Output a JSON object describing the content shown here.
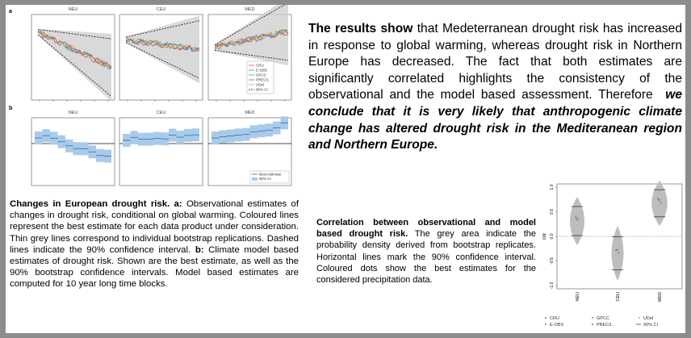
{
  "main_text": {
    "lead": "The results show",
    "body": "that Medeterranean drought risk has increased in response to global warming, whereas drought risk in Northern Europe has decreased. The fact that both estimates are significantly correlated highlights the consistency of the observational and the model based assessment. Therefore",
    "conclusion": "we conclude that it is very likely that anthropogenic climate change has altered drought risk in the Mediteranean region and Northern Europe."
  },
  "figure_left": {
    "panel_a": "a",
    "panel_b": "b",
    "regions": [
      "NEU",
      "CEU",
      "MED"
    ],
    "legend_a": [
      "CRU",
      "E-OBS",
      "GPCC",
      "PREC/L",
      "UDel",
      "90% CI"
    ],
    "legend_b": [
      "Best estimate",
      "90% CI"
    ]
  },
  "caption_left": {
    "title": "Changes in European drought risk.",
    "a_label": "a:",
    "a_text": "Observational estimates of changes in drought risk, conditional on global warming. Coloured lines represent the best estimate for each data product under consideration. Thin grey lines correspond to individual bootstrap replications. Dashed lines indicate the 90% confidence interval.",
    "b_label": "b:",
    "b_text": "Climate model based estimates of drought risk. Shown are the best estimate, as well as the 90% bootstrap confidence intervals. Model based estimates are computed for 10 year long time blocks."
  },
  "caption_right": {
    "title": "Correlation between observational and model based drought risk.",
    "text": "The grey area indicate the probability density derived from bootstrap replicates. Horizontal lines mark the 90% confidence interval. Coloured dots show the best estimates for the considered precipitation data."
  },
  "figure_right": {
    "y_label": "cor",
    "yticks": [
      "1.0",
      "0.5",
      "0.0",
      "-0.5",
      "-1.0"
    ],
    "regions": [
      "NEU",
      "CEU",
      "MED"
    ],
    "legend": [
      "CRU",
      "GPCC",
      "UDel",
      "E-OBS",
      "PREC/L",
      "90% CI"
    ]
  }
}
